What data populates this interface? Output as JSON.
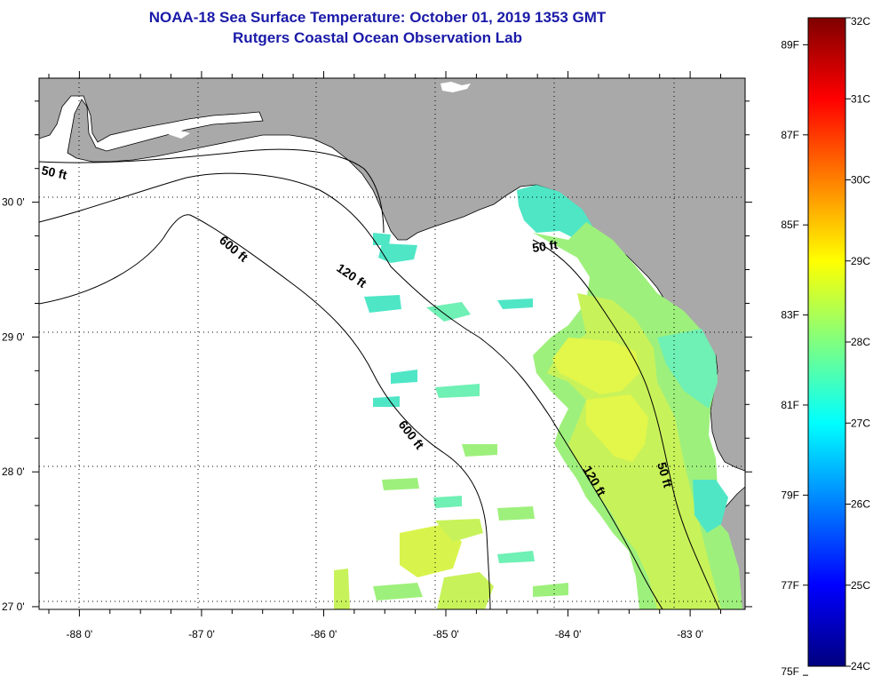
{
  "title": "NOAA-18 Sea Surface Temperature:  October 01, 2019 1353 GMT",
  "subtitle": "Rutgers Coastal Ocean Observation Lab",
  "map": {
    "lon_range": [
      -88.33,
      -82.55
    ],
    "lat_range": [
      26.98,
      30.92
    ],
    "lat_labels": [
      {
        "value": 30,
        "text": "30 0'"
      },
      {
        "value": 29,
        "text": "29 0'"
      },
      {
        "value": 28,
        "text": "28 0'"
      },
      {
        "value": 27,
        "text": "27 0'"
      }
    ],
    "lon_labels": [
      {
        "value": -88,
        "text": "-88 0'"
      },
      {
        "value": -87,
        "text": "-87 0'"
      },
      {
        "value": -86,
        "text": "-86 0'"
      },
      {
        "value": -85,
        "text": "-85 0'"
      },
      {
        "value": -84,
        "text": "-84 0'"
      },
      {
        "value": -83,
        "text": "-83 0'"
      }
    ],
    "contour_labels": [
      "50 ft",
      "120 ft",
      "600 ft",
      "600 ft",
      "50 ft",
      "120 ft",
      "50 ft"
    ],
    "colors": {
      "land": "#a9a9a9",
      "ocean_nodata": "#ffffff",
      "contour": "#000000",
      "grid": "#000000"
    }
  },
  "colorbar": {
    "min_c": 24,
    "max_c": 32,
    "celsius_labels": [
      "32C",
      "31C",
      "30C",
      "29C",
      "28C",
      "27C",
      "26C",
      "25C",
      "24C"
    ],
    "fahrenheit_labels": [
      {
        "value": 89,
        "text": "89F"
      },
      {
        "value": 87,
        "text": "87F"
      },
      {
        "value": 85,
        "text": "85F"
      },
      {
        "value": 83,
        "text": "83F"
      },
      {
        "value": 81,
        "text": "81F"
      },
      {
        "value": 79,
        "text": "79F"
      },
      {
        "value": 77,
        "text": "77F"
      },
      {
        "value": 75,
        "text": "75F"
      }
    ],
    "gradient": [
      "#00007f",
      "#0000ff",
      "#0080ff",
      "#00ffff",
      "#80ff80",
      "#ffff00",
      "#ff8000",
      "#ff0000",
      "#7f0000"
    ]
  }
}
